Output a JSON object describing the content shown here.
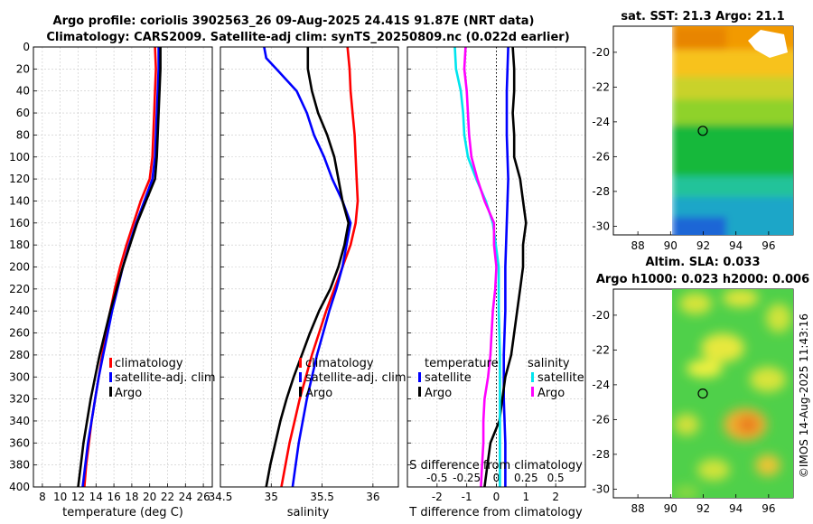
{
  "header": {
    "title_line1": "Argo profile: coriolis 3902563_26 09-Aug-2025 24.41S 91.87E (NRT data)",
    "title_line2": "Climatology: CARS2009. Satellite-adj clim: synTS_20250809.nc (0.022d earlier)"
  },
  "colors": {
    "climatology": "#ff0000",
    "satellite": "#0000ff",
    "argo": "#000000",
    "s_satellite": "#00e5ee",
    "s_argo": "#ff00ff"
  },
  "chart_data": [
    {
      "id": "temperature",
      "type": "line",
      "xlabel": "temperature (deg C)",
      "xlim": [
        7,
        27
      ],
      "xticks": [
        8,
        10,
        12,
        14,
        16,
        18,
        20,
        22,
        24,
        26
      ],
      "ylim": [
        0,
        400
      ],
      "yticks": [
        0,
        20,
        40,
        60,
        80,
        100,
        120,
        140,
        160,
        180,
        200,
        220,
        240,
        260,
        280,
        300,
        320,
        340,
        360,
        380,
        400
      ],
      "legend": [
        "climatology",
        "satellite-adj. clim",
        "Argo"
      ],
      "series": [
        {
          "name": "climatology",
          "depth": [
            0,
            20,
            40,
            60,
            80,
            100,
            120,
            140,
            160,
            180,
            200,
            220,
            240,
            260,
            280,
            300,
            320,
            340,
            360,
            380,
            400
          ],
          "values": [
            20.6,
            20.7,
            20.6,
            20.5,
            20.4,
            20.3,
            20.0,
            19.0,
            18.2,
            17.4,
            16.7,
            16.1,
            15.6,
            15.1,
            14.7,
            14.3,
            13.9,
            13.5,
            13.2,
            12.9,
            12.7
          ]
        },
        {
          "name": "satellite-adj. clim",
          "depth": [
            0,
            20,
            40,
            60,
            80,
            100,
            120,
            140,
            160,
            180,
            200,
            220,
            240,
            260,
            280,
            300,
            320,
            340,
            360,
            380,
            400
          ],
          "values": [
            21.0,
            21.0,
            20.9,
            20.8,
            20.7,
            20.6,
            20.3,
            19.4,
            18.5,
            17.7,
            17.0,
            16.4,
            15.8,
            15.3,
            14.8,
            14.3,
            13.9,
            13.5,
            13.1,
            12.8,
            12.5
          ]
        },
        {
          "name": "Argo",
          "depth": [
            0,
            20,
            40,
            60,
            80,
            100,
            120,
            140,
            160,
            180,
            200,
            220,
            240,
            260,
            280,
            300,
            320,
            340,
            360,
            380,
            400
          ],
          "values": [
            21.2,
            21.2,
            21.1,
            21.0,
            20.9,
            20.8,
            20.6,
            19.6,
            18.6,
            17.8,
            17.0,
            16.3,
            15.6,
            15.0,
            14.4,
            13.9,
            13.4,
            13.0,
            12.6,
            12.3,
            12.0
          ]
        }
      ]
    },
    {
      "id": "salinity",
      "type": "line",
      "xlabel": "salinity",
      "xlim": [
        34.5,
        36.25
      ],
      "xticks": [
        34.5,
        35,
        35.5,
        36
      ],
      "ylim": [
        0,
        400
      ],
      "legend": [
        "climatology",
        "satellite-adj. clim",
        "Argo"
      ],
      "series": [
        {
          "name": "climatology",
          "depth": [
            0,
            20,
            40,
            60,
            80,
            100,
            120,
            140,
            160,
            180,
            200,
            220,
            240,
            260,
            280,
            300,
            320,
            340,
            360,
            380,
            400
          ],
          "values": [
            35.75,
            35.77,
            35.78,
            35.8,
            35.82,
            35.83,
            35.84,
            35.85,
            35.83,
            35.78,
            35.7,
            35.62,
            35.54,
            35.47,
            35.4,
            35.34,
            35.28,
            35.23,
            35.18,
            35.14,
            35.1
          ]
        },
        {
          "name": "satellite-adj. clim",
          "depth": [
            0,
            10,
            20,
            40,
            60,
            80,
            100,
            120,
            140,
            160,
            180,
            200,
            220,
            240,
            260,
            280,
            300,
            320,
            340,
            360,
            380,
            400
          ],
          "values": [
            34.93,
            34.95,
            35.05,
            35.25,
            35.35,
            35.42,
            35.52,
            35.6,
            35.7,
            35.78,
            35.74,
            35.7,
            35.64,
            35.57,
            35.51,
            35.45,
            35.4,
            35.35,
            35.31,
            35.27,
            35.24,
            35.21
          ]
        },
        {
          "name": "Argo",
          "depth": [
            0,
            20,
            40,
            60,
            80,
            100,
            120,
            140,
            160,
            180,
            200,
            220,
            240,
            260,
            280,
            300,
            320,
            340,
            360,
            380,
            400
          ],
          "values": [
            35.36,
            35.36,
            35.4,
            35.46,
            35.55,
            35.62,
            35.66,
            35.7,
            35.76,
            35.72,
            35.66,
            35.58,
            35.47,
            35.38,
            35.3,
            35.22,
            35.15,
            35.09,
            35.04,
            34.99,
            34.95
          ]
        }
      ]
    },
    {
      "id": "difference",
      "type": "line",
      "xlabel": "T difference from climatology",
      "xlabel_top": "S difference from climatology",
      "xlim": [
        -3,
        3
      ],
      "xticks": [
        -2,
        -1,
        0,
        1,
        2
      ],
      "xticks_top": [
        -0.5,
        -0.25,
        0,
        0.25,
        0.5
      ],
      "xlim_top": [
        -0.75,
        0.75
      ],
      "ylim": [
        0,
        400
      ],
      "legend_temperature": {
        "header": "temperature",
        "items": [
          "satellite",
          "Argo"
        ]
      },
      "legend_salinity": {
        "header": "salinity",
        "items": [
          "satellite",
          "Argo"
        ]
      },
      "series": [
        {
          "name": "temperature satellite",
          "depth": [
            0,
            40,
            80,
            120,
            160,
            200,
            240,
            280,
            320,
            360,
            400
          ],
          "values": [
            0.4,
            0.35,
            0.35,
            0.4,
            0.35,
            0.3,
            0.3,
            0.25,
            0.25,
            0.3,
            0.3
          ]
        },
        {
          "name": "temperature Argo",
          "depth": [
            0,
            20,
            40,
            60,
            80,
            100,
            120,
            140,
            160,
            180,
            200,
            220,
            240,
            260,
            280,
            300,
            320,
            340,
            360,
            380,
            400
          ],
          "values": [
            0.55,
            0.6,
            0.6,
            0.55,
            0.6,
            0.6,
            0.8,
            0.9,
            1.0,
            0.9,
            0.9,
            0.8,
            0.7,
            0.6,
            0.5,
            0.3,
            0.2,
            0.1,
            -0.2,
            -0.3,
            -0.4
          ]
        },
        {
          "name": "salinity satellite",
          "depth": [
            0,
            20,
            40,
            60,
            80,
            100,
            120,
            140,
            160,
            200,
            240,
            280,
            320,
            360,
            400
          ],
          "values": [
            -0.35,
            -0.34,
            -0.3,
            -0.28,
            -0.27,
            -0.24,
            -0.17,
            -0.09,
            -0.03,
            0.02,
            0.02,
            0.03,
            0.03,
            0.03,
            0.03
          ]
        },
        {
          "name": "salinity Argo",
          "depth": [
            0,
            20,
            40,
            60,
            80,
            100,
            120,
            140,
            160,
            180,
            200,
            220,
            240,
            260,
            280,
            300,
            320,
            340,
            360,
            380,
            400
          ],
          "values": [
            -0.26,
            -0.27,
            -0.25,
            -0.24,
            -0.23,
            -0.21,
            -0.16,
            -0.1,
            -0.02,
            -0.02,
            0.0,
            -0.01,
            -0.03,
            -0.04,
            -0.05,
            -0.07,
            -0.1,
            -0.11,
            -0.11,
            -0.12,
            -0.13
          ]
        }
      ]
    },
    {
      "id": "sst-map",
      "type": "heatmap",
      "title": "sat. SST: 21.3 Argo: 21.1",
      "xlim": [
        86.5,
        97.5
      ],
      "xticks": [
        88,
        90,
        92,
        94,
        96
      ],
      "ylim": [
        -30.5,
        -18.5
      ],
      "yticks": [
        -20,
        -22,
        -24,
        -26,
        -28,
        -30
      ],
      "marker": {
        "lon": 91.87,
        "lat": -24.41
      }
    },
    {
      "id": "sla-map",
      "type": "heatmap",
      "title_line1": "Altim. SLA: 0.033",
      "title_line2": "Argo h1000: 0.023 h2000: 0.006",
      "xlim": [
        86.5,
        97.5
      ],
      "xticks": [
        88,
        90,
        92,
        94,
        96
      ],
      "ylim": [
        -30.5,
        -18.5
      ],
      "yticks": [
        -20,
        -22,
        -24,
        -26,
        -28,
        -30
      ],
      "marker": {
        "lon": 91.87,
        "lat": -24.41
      }
    }
  ],
  "footer": {
    "stamp": "©IMOS 14-Aug-2025 11:43:16"
  }
}
